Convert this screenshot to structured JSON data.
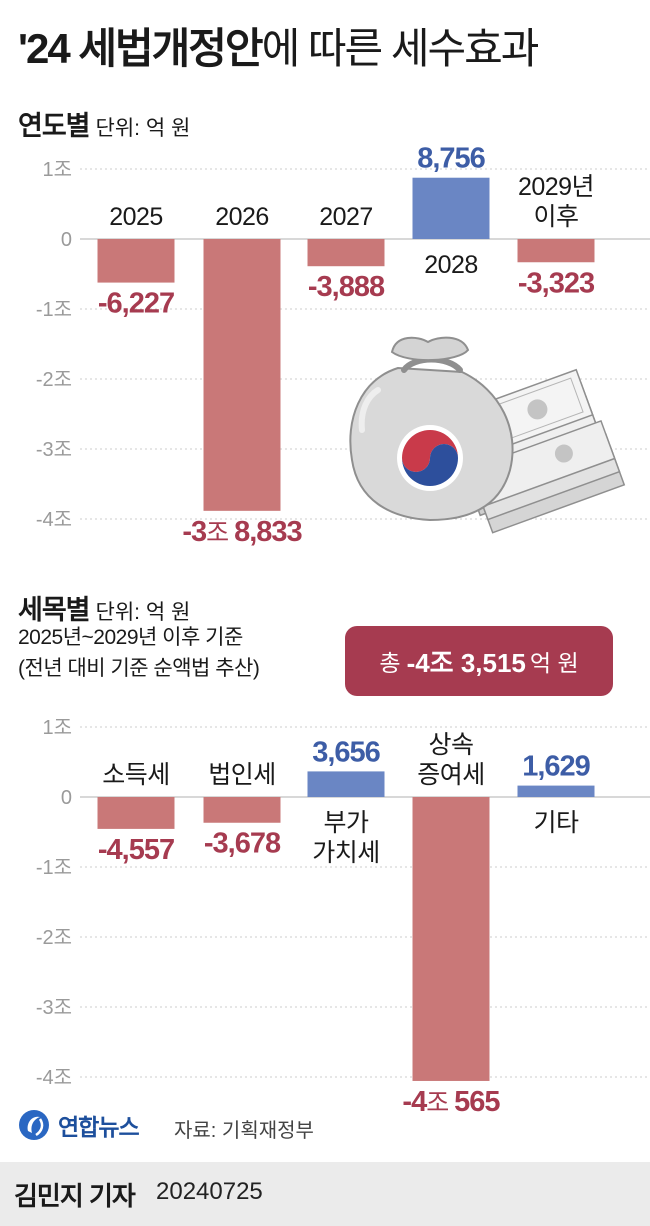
{
  "title": {
    "bold": "'24 세법개정안",
    "light": "에 따른 세수효과"
  },
  "section1": {
    "heading": "연도별",
    "unit": "단위: 억 원"
  },
  "section2": {
    "heading": "세목별",
    "unit": "단위: 억 원"
  },
  "note": {
    "line1": "2025년~2029년 이후 기준",
    "line2": "(전년 대비 기준 순액법 추산)"
  },
  "total_badge": {
    "prefix": "총",
    "value": "-4조 3,515",
    "unit": "억 원"
  },
  "source": {
    "logo_name": "연합뉴스",
    "text": "자료: 기획재정부"
  },
  "byline": {
    "reporter": "김민지 기자",
    "date": "20240725"
  },
  "colors": {
    "negative": "#c97878",
    "positive": "#6a86c4",
    "negative_label": "#a63b50",
    "positive_label": "#3d5da6",
    "badge": "#a63b50",
    "axis_text": "#9a9a9a"
  },
  "icons": {
    "illustration": "money-bag-with-taegeuk-and-banknotes",
    "logo": "yonhap-globe-logo"
  },
  "chart_data": [
    {
      "type": "bar",
      "title": "연도별",
      "unit": "억 원",
      "categories": [
        [
          "2025"
        ],
        [
          "2026"
        ],
        [
          "2027"
        ],
        [
          "2028"
        ],
        [
          "2029년",
          "이후"
        ]
      ],
      "values": [
        -6227,
        -38833,
        -3888,
        8756,
        -3323
      ],
      "value_labels": [
        "-6,227",
        "-3조 8,833",
        "-3,888",
        "8,756",
        "-3,323"
      ],
      "ylim": [
        -40000,
        10000
      ],
      "yticks": [
        10000,
        0,
        -10000,
        -20000,
        -30000,
        -40000
      ],
      "ytick_labels": [
        "1조",
        "0",
        "-1조",
        "-2조",
        "-3조",
        "-4조"
      ],
      "grid": true
    },
    {
      "type": "bar",
      "title": "세목별",
      "unit": "억 원",
      "categories": [
        [
          "소득세"
        ],
        [
          "법인세"
        ],
        [
          "부가",
          "가치세"
        ],
        [
          "상속",
          "증여세"
        ],
        [
          "기타"
        ]
      ],
      "values": [
        -4557,
        -3678,
        3656,
        -40565,
        1629
      ],
      "value_labels": [
        "-4,557",
        "-3,678",
        "3,656",
        "-4조 565",
        "1,629"
      ],
      "ylim": [
        -40000,
        10000
      ],
      "yticks": [
        10000,
        0,
        -10000,
        -20000,
        -30000,
        -40000
      ],
      "ytick_labels": [
        "1조",
        "0",
        "-1조",
        "-2조",
        "-3조",
        "-4조"
      ],
      "grid": true
    }
  ]
}
